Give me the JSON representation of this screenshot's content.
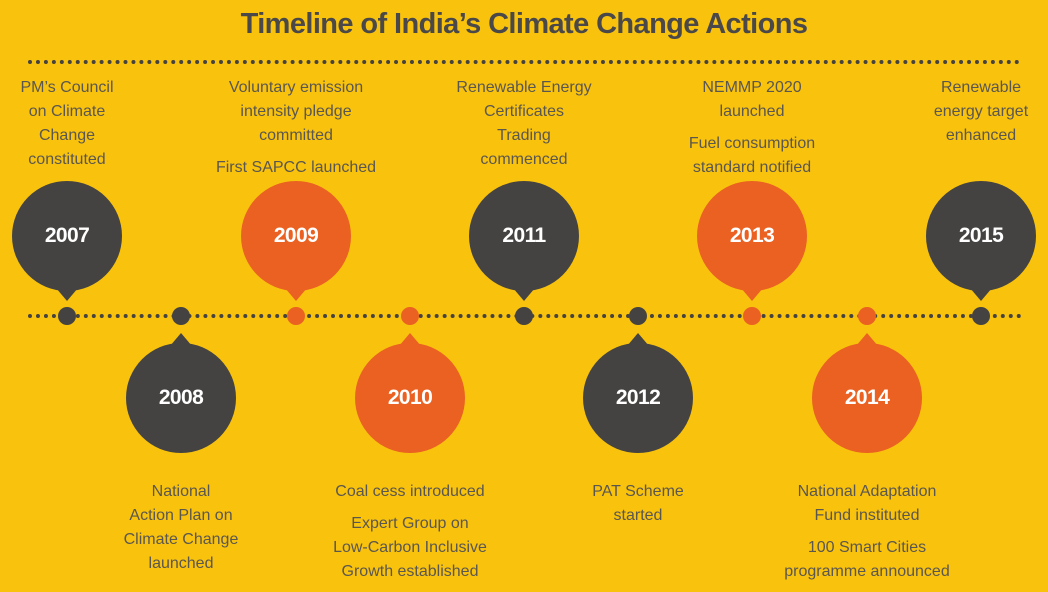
{
  "title": "Timeline of India’s Climate Change Actions",
  "colors": {
    "background": "#f9c30d",
    "dark": "#454341",
    "orange": "#ea6121",
    "text": "#5a5650"
  },
  "events": [
    {
      "year": "2007",
      "color": "dark",
      "position": "above",
      "text": [
        "PM’s Council\non Climate\nChange\nconstituted"
      ]
    },
    {
      "year": "2008",
      "color": "dark",
      "position": "below",
      "text": [
        "National\nAction Plan on\nClimate Change\nlaunched"
      ]
    },
    {
      "year": "2009",
      "color": "orange",
      "position": "above",
      "text": [
        "Voluntary emission\nintensity pledge\ncommitted",
        "First SAPCC launched"
      ]
    },
    {
      "year": "2010",
      "color": "orange",
      "position": "below",
      "text": [
        "Coal cess introduced",
        "Expert Group on\nLow-Carbon Inclusive\nGrowth established"
      ]
    },
    {
      "year": "2011",
      "color": "dark",
      "position": "above",
      "text": [
        "Renewable Energy\nCertificates\nTrading\ncommenced"
      ]
    },
    {
      "year": "2012",
      "color": "dark",
      "position": "below",
      "text": [
        "PAT Scheme\nstarted"
      ]
    },
    {
      "year": "2013",
      "color": "orange",
      "position": "above",
      "text": [
        "NEMMP 2020\nlaunched",
        "Fuel consumption\nstandard notified"
      ]
    },
    {
      "year": "2014",
      "color": "orange",
      "position": "below",
      "text": [
        "National Adaptation\nFund  instituted",
        "100 Smart Cities\nprogramme announced"
      ]
    },
    {
      "year": "2015",
      "color": "dark",
      "position": "above",
      "text": [
        "Renewable\nenergy target\nenhanced"
      ]
    }
  ]
}
